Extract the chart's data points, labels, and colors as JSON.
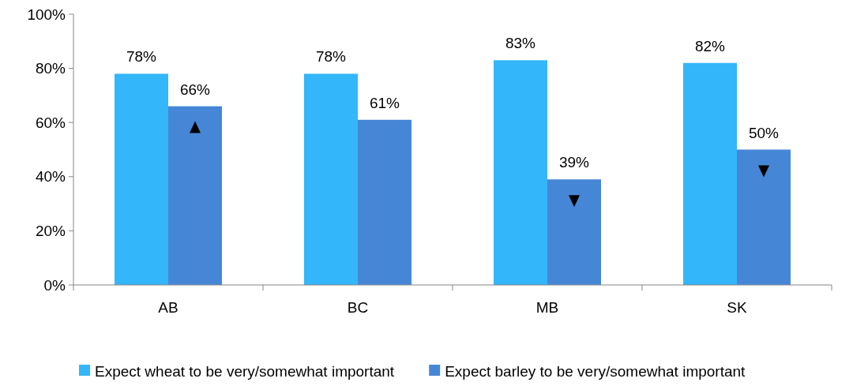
{
  "chart_data": {
    "type": "bar",
    "categories": [
      "AB",
      "BC",
      "MB",
      "SK"
    ],
    "series": [
      {
        "name": "Expect wheat to be very/somewhat important",
        "color": "#33b6fa",
        "values": [
          78,
          78,
          83,
          82
        ]
      },
      {
        "name": "Expect barley to be very/somewhat important",
        "color": "#4686d6",
        "values": [
          66,
          61,
          39,
          50
        ]
      }
    ],
    "ylim": [
      0,
      100
    ],
    "yticks": [
      {
        "value": 0,
        "label": "0%"
      },
      {
        "value": 20,
        "label": "20%"
      },
      {
        "value": 40,
        "label": "40%"
      },
      {
        "value": 60,
        "label": "60%"
      },
      {
        "value": 80,
        "label": "80%"
      },
      {
        "value": 100,
        "label": "100%"
      }
    ],
    "value_labels": [
      [
        "78%",
        "78%",
        "83%",
        "82%"
      ],
      [
        "66%",
        "61%",
        "39%",
        "50%"
      ]
    ],
    "grid": false,
    "legend": "bottom"
  }
}
